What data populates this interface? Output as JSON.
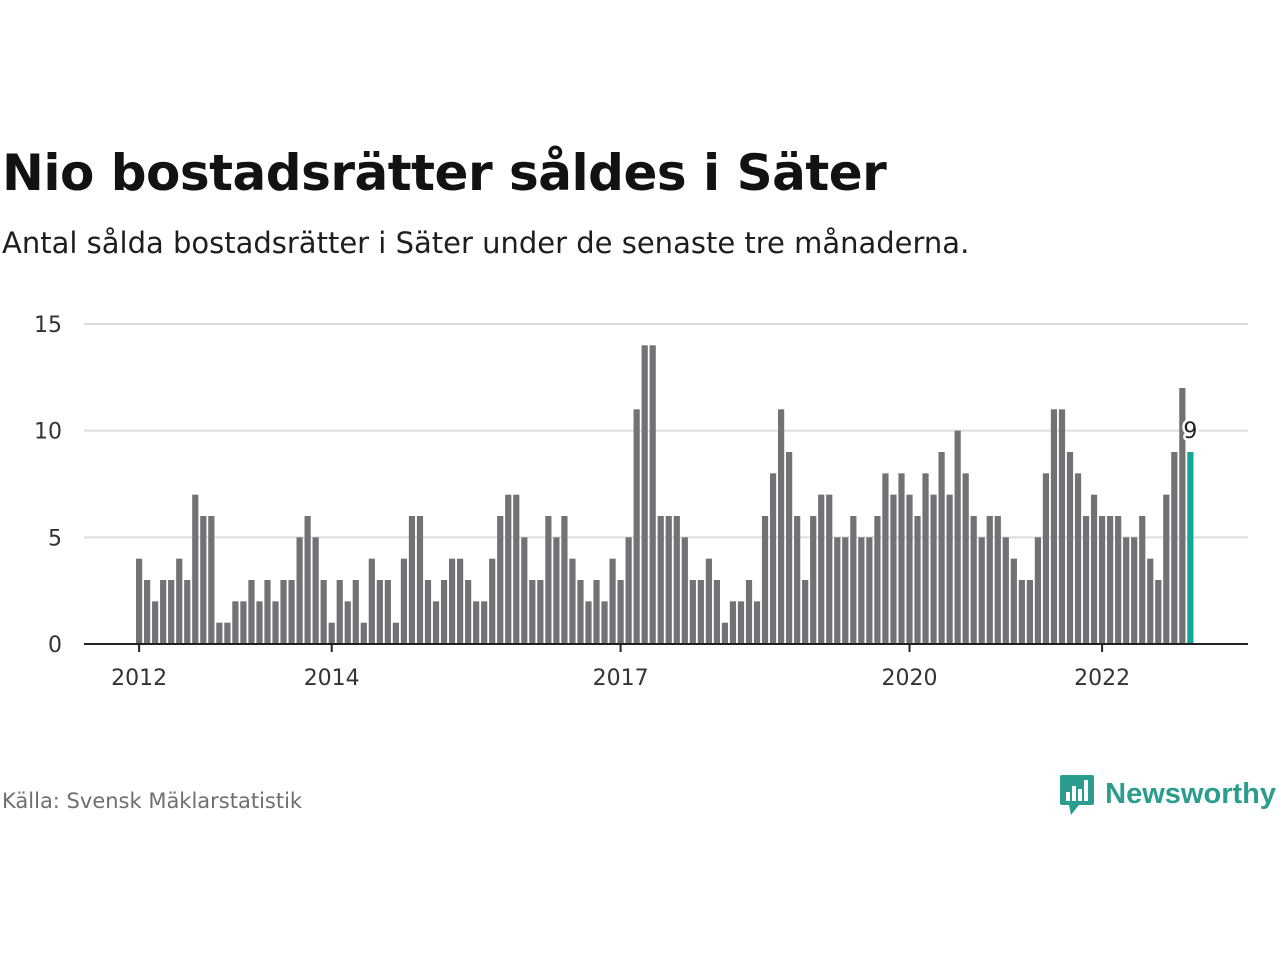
{
  "header": {
    "title": "Nio bostadsrätter såldes i Säter",
    "subtitle": "Antal sålda bostadsrätter i Säter under de senaste tre månaderna."
  },
  "footer": {
    "source": "Källa: Svensk Mäklarstatistik",
    "brand": "Newsworthy"
  },
  "colors": {
    "bar": "#727176",
    "highlight": "#14a597",
    "grid": "#dddddd",
    "axis": "#222222",
    "brand": "#2a9d8f"
  },
  "icons": {
    "brand_logo": "bar-chart-speech-bubble-icon"
  },
  "chart_data": {
    "type": "bar",
    "x_start": "2012-01",
    "x_step": "month",
    "values": [
      4,
      3,
      2,
      3,
      3,
      4,
      3,
      7,
      6,
      6,
      1,
      1,
      2,
      2,
      3,
      2,
      3,
      2,
      3,
      3,
      5,
      6,
      5,
      3,
      1,
      3,
      2,
      3,
      1,
      4,
      3,
      3,
      1,
      4,
      6,
      6,
      3,
      2,
      3,
      4,
      4,
      3,
      2,
      2,
      4,
      6,
      7,
      7,
      5,
      3,
      3,
      6,
      5,
      6,
      4,
      3,
      2,
      3,
      2,
      4,
      3,
      5,
      11,
      14,
      14,
      6,
      6,
      6,
      5,
      3,
      3,
      4,
      3,
      1,
      2,
      2,
      3,
      2,
      6,
      8,
      11,
      9,
      6,
      3,
      6,
      7,
      7,
      5,
      5,
      6,
      5,
      5,
      6,
      8,
      7,
      8,
      7,
      6,
      8,
      7,
      9,
      7,
      10,
      8,
      6,
      5,
      6,
      6,
      5,
      4,
      3,
      3,
      5,
      8,
      11,
      11,
      9,
      8,
      6,
      7,
      6,
      6,
      6,
      5,
      5,
      6,
      4,
      3,
      7,
      9,
      12,
      9
    ],
    "highlight_last": true,
    "highlight_label": "9",
    "yticks": [
      0,
      5,
      10,
      15
    ],
    "ylim": [
      0,
      15
    ],
    "xticks": [
      {
        "label": "2012",
        "index": 0
      },
      {
        "label": "2014",
        "index": 24
      },
      {
        "label": "2017",
        "index": 60
      },
      {
        "label": "2020",
        "index": 96
      },
      {
        "label": "2022",
        "index": 120
      }
    ],
    "grid": true
  }
}
